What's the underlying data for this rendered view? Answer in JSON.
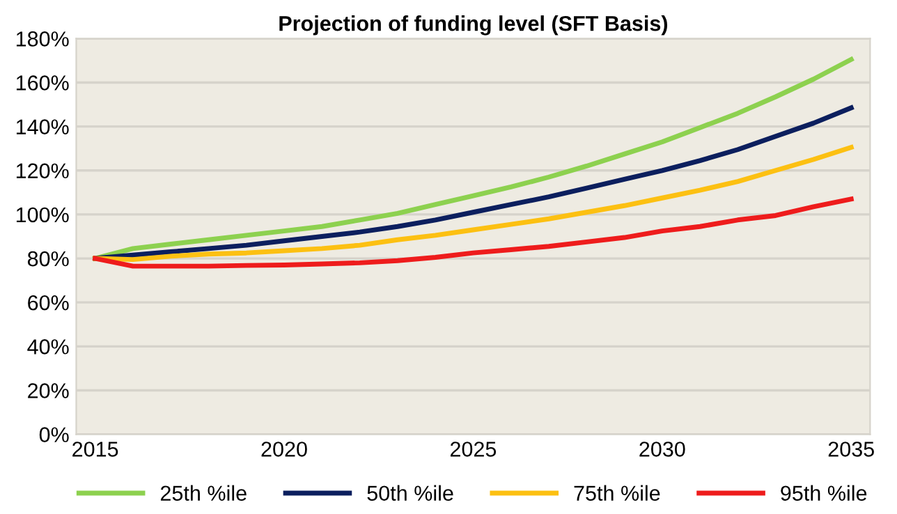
{
  "chart_data": {
    "type": "line",
    "title": "Projection of funding level (SFT Basis)",
    "x": [
      2015,
      2016,
      2017,
      2018,
      2019,
      2020,
      2021,
      2022,
      2023,
      2024,
      2025,
      2026,
      2027,
      2028,
      2029,
      2030,
      2031,
      2032,
      2033,
      2034,
      2035
    ],
    "series": [
      {
        "name": "25th %ile",
        "color": "#8dd14f",
        "values": [
          80,
          84.5,
          86.5,
          88.5,
          90.5,
          92.5,
          94.5,
          97.5,
          100.5,
          104.5,
          108.5,
          112.5,
          117,
          122,
          127.5,
          133,
          139.5,
          146,
          153.5,
          161.5,
          170.5
        ]
      },
      {
        "name": "50th %ile",
        "color": "#0c1f5e",
        "values": [
          80,
          81.5,
          83,
          84.5,
          86,
          88,
          90,
          92,
          94.5,
          97.5,
          101,
          104.5,
          108,
          112,
          116,
          120,
          124.5,
          129.5,
          135.5,
          141.5,
          148.5
        ]
      },
      {
        "name": "75th %ile",
        "color": "#fcc012",
        "values": [
          80,
          79.5,
          81,
          82,
          82.5,
          83.5,
          84.5,
          86,
          88.5,
          90.5,
          93,
          95.5,
          98,
          101,
          104,
          107.5,
          111,
          115,
          120,
          125,
          130.5
        ]
      },
      {
        "name": "95th %ile",
        "color": "#ee1c1c",
        "values": [
          80,
          76.5,
          76.5,
          76.5,
          76.8,
          77,
          77.5,
          78,
          79,
          80.5,
          82.5,
          84,
          85.5,
          87.5,
          89.5,
          92.5,
          94.5,
          97.5,
          99.5,
          103.5,
          107
        ]
      }
    ],
    "xlim": [
      2014.5,
      2035.5
    ],
    "xticks": [
      2015,
      2020,
      2025,
      2030,
      2035
    ],
    "ylim": [
      0,
      180
    ],
    "yticks": [
      {
        "value": 0,
        "label": "0%"
      },
      {
        "value": 20,
        "label": "20%"
      },
      {
        "value": 40,
        "label": "40%"
      },
      {
        "value": 60,
        "label": "60%"
      },
      {
        "value": 80,
        "label": "80%"
      },
      {
        "value": 100,
        "label": "100%"
      },
      {
        "value": 120,
        "label": "120%"
      },
      {
        "value": 140,
        "label": "140%"
      },
      {
        "value": 160,
        "label": "160%"
      },
      {
        "value": 180,
        "label": "180%"
      }
    ],
    "grid": "y",
    "legend": "bottom",
    "marker": "none",
    "line_style": "solid"
  }
}
